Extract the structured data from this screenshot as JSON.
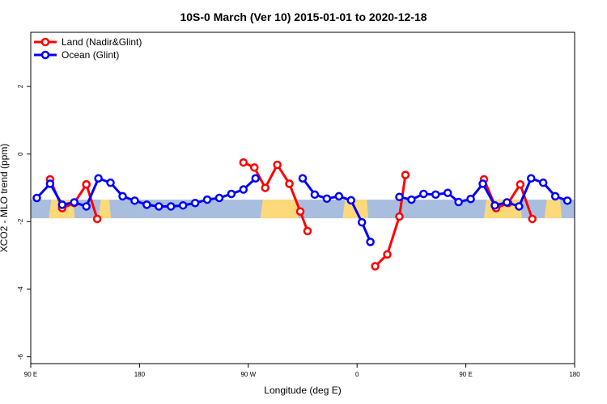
{
  "chart_data": {
    "type": "line",
    "title": "10S-0 March (Ver 10)   2015-01-01 to 2020-12-18",
    "xlabel": "Longitude (deg E)",
    "ylabel": "XCO2 - MLO trend (ppm)",
    "xlim": [
      90,
      540
    ],
    "ylim": [
      -6.2,
      3.6
    ],
    "x_ticks": [
      {
        "value": 90,
        "label": "90 E"
      },
      {
        "value": 180,
        "label": "180"
      },
      {
        "value": 270,
        "label": "90 W"
      },
      {
        "value": 360,
        "label": "0"
      },
      {
        "value": 450,
        "label": "90 E"
      },
      {
        "value": 540,
        "label": "180"
      }
    ],
    "y_ticks": [
      {
        "value": 2,
        "label": "2"
      },
      {
        "value": 0,
        "label": "0"
      },
      {
        "value": -2,
        "label": "-2"
      },
      {
        "value": -4,
        "label": "-4"
      },
      {
        "value": -6,
        "label": "-6"
      }
    ],
    "grid": false,
    "legend_position": "top-left",
    "background_band": {
      "lat_range_ppm": [
        -1.35,
        -1.9
      ],
      "ocean_color": "#a9bedf",
      "land_color": "#fdd97a",
      "land_segments": [
        [
          105,
          125
        ],
        [
          146,
          155
        ],
        [
          280,
          310
        ],
        [
          348,
          368
        ],
        [
          465,
          495
        ],
        [
          515,
          528
        ]
      ]
    },
    "series": [
      {
        "name": "Land (Nadir&Glint)",
        "color": "#ff0000",
        "segments": [
          {
            "x": [
              106,
              116,
              126,
              136
            ],
            "y": [
              -0.75,
              -1.6,
              -1.45,
              -0.9
            ]
          },
          {
            "x": [
              136,
              145
            ],
            "y": [
              -0.9,
              -1.92
            ]
          },
          {
            "x": [
              266,
              275,
              284,
              294,
              304
            ],
            "y": [
              -0.25,
              -0.4,
              -1.0,
              -0.32,
              -0.88
            ]
          },
          {
            "x": [
              304,
              313,
              319
            ],
            "y": [
              -0.88,
              -1.7,
              -2.28
            ]
          },
          {
            "x": [
              375,
              385,
              395,
              400
            ],
            "y": [
              -3.32,
              -2.97,
              -1.85,
              -0.62
            ]
          },
          {
            "x": [
              465,
              475,
              485,
              495,
              505
            ],
            "y": [
              -0.75,
              -1.6,
              -1.45,
              -0.9,
              -1.92
            ]
          }
        ]
      },
      {
        "name": "Ocean (Glint)",
        "color": "#0000ff",
        "segments": [
          {
            "x": [
              95,
              106,
              116,
              126,
              136,
              146,
              156,
              166,
              176,
              186,
              196,
              206,
              216,
              226,
              236,
              246,
              256,
              266,
              276
            ],
            "y": [
              -1.3,
              -0.88,
              -1.5,
              -1.43,
              -1.55,
              -0.72,
              -0.85,
              -1.25,
              -1.38,
              -1.5,
              -1.55,
              -1.55,
              -1.52,
              -1.45,
              -1.35,
              -1.3,
              -1.18,
              -1.05,
              -0.72
            ]
          },
          {
            "x": [
              315,
              325,
              335,
              345,
              355,
              364,
              371
            ],
            "y": [
              -0.72,
              -1.2,
              -1.32,
              -1.25,
              -1.37,
              -2.02,
              -2.6
            ]
          },
          {
            "x": [
              395,
              405,
              415,
              425,
              435,
              444,
              454,
              464,
              474,
              484,
              494,
              504,
              514,
              524,
              534
            ],
            "y": [
              -1.27,
              -1.35,
              -1.18,
              -1.2,
              -1.15,
              -1.42,
              -1.33,
              -0.88,
              -1.52,
              -1.43,
              -1.55,
              -0.72,
              -0.85,
              -1.25,
              -1.38
            ]
          }
        ]
      }
    ]
  }
}
